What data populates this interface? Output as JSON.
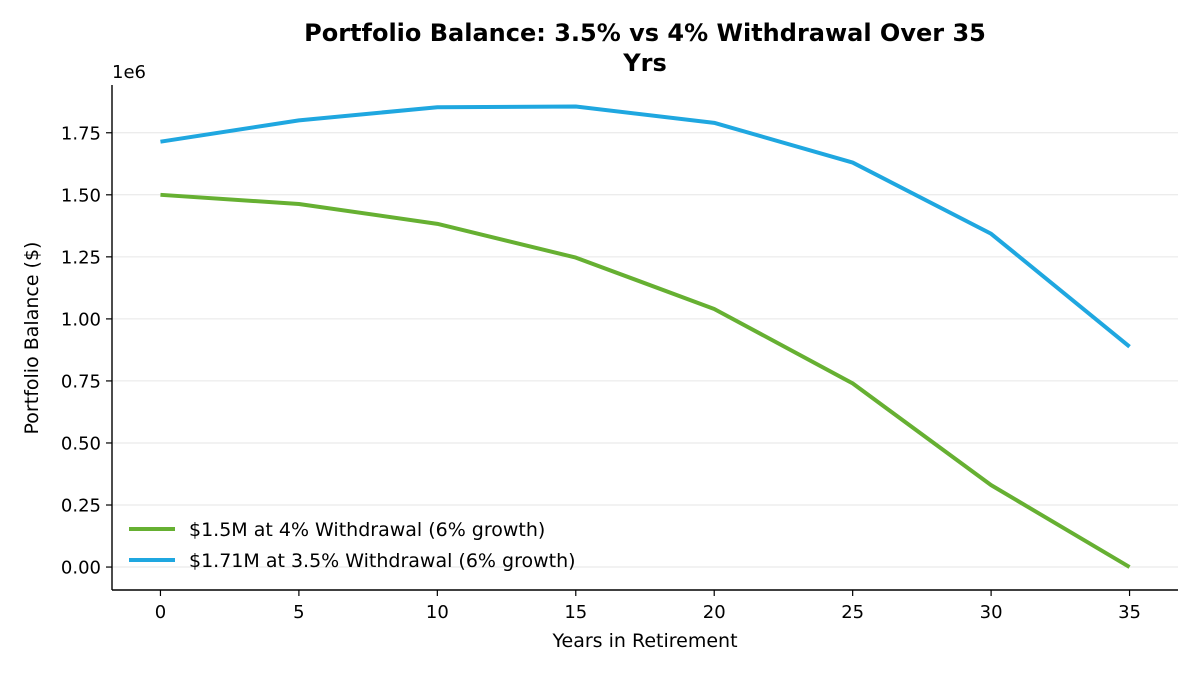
{
  "chart_data": {
    "type": "line",
    "title_line1": "Portfolio Balance: 3.5% vs 4% Withdrawal Over 35",
    "title_line2": "Yrs",
    "xlabel": "Years in Retirement",
    "ylabel": "Portfolio Balance ($)",
    "y_offset_text": "1e6",
    "x": [
      0,
      5,
      10,
      15,
      20,
      25,
      30,
      35
    ],
    "xlim": [
      -1.75,
      36.75
    ],
    "ylim": [
      -0.0925,
      1.9425
    ],
    "x_ticks": [
      0,
      5,
      10,
      15,
      20,
      25,
      30,
      35
    ],
    "y_ticks": [
      0.0,
      0.25,
      0.5,
      0.75,
      1.0,
      1.25,
      1.5,
      1.75
    ],
    "y_tick_labels": [
      "0.00",
      "0.25",
      "0.50",
      "0.75",
      "1.00",
      "1.25",
      "1.50",
      "1.75"
    ],
    "grid": "horizontal",
    "legend_position": "lower-left",
    "series": [
      {
        "name": "$1.5M at 4% Withdrawal (6% growth)",
        "color": "#66b032",
        "values": [
          1.5,
          1.463,
          1.383,
          1.247,
          1.04,
          0.74,
          0.33,
          0.0
        ]
      },
      {
        "name": "$1.71M at 3.5% Withdrawal (6% growth)",
        "color": "#1fa7e0",
        "values": [
          1.714,
          1.8,
          1.853,
          1.856,
          1.79,
          1.63,
          1.343,
          0.888
        ]
      }
    ]
  }
}
